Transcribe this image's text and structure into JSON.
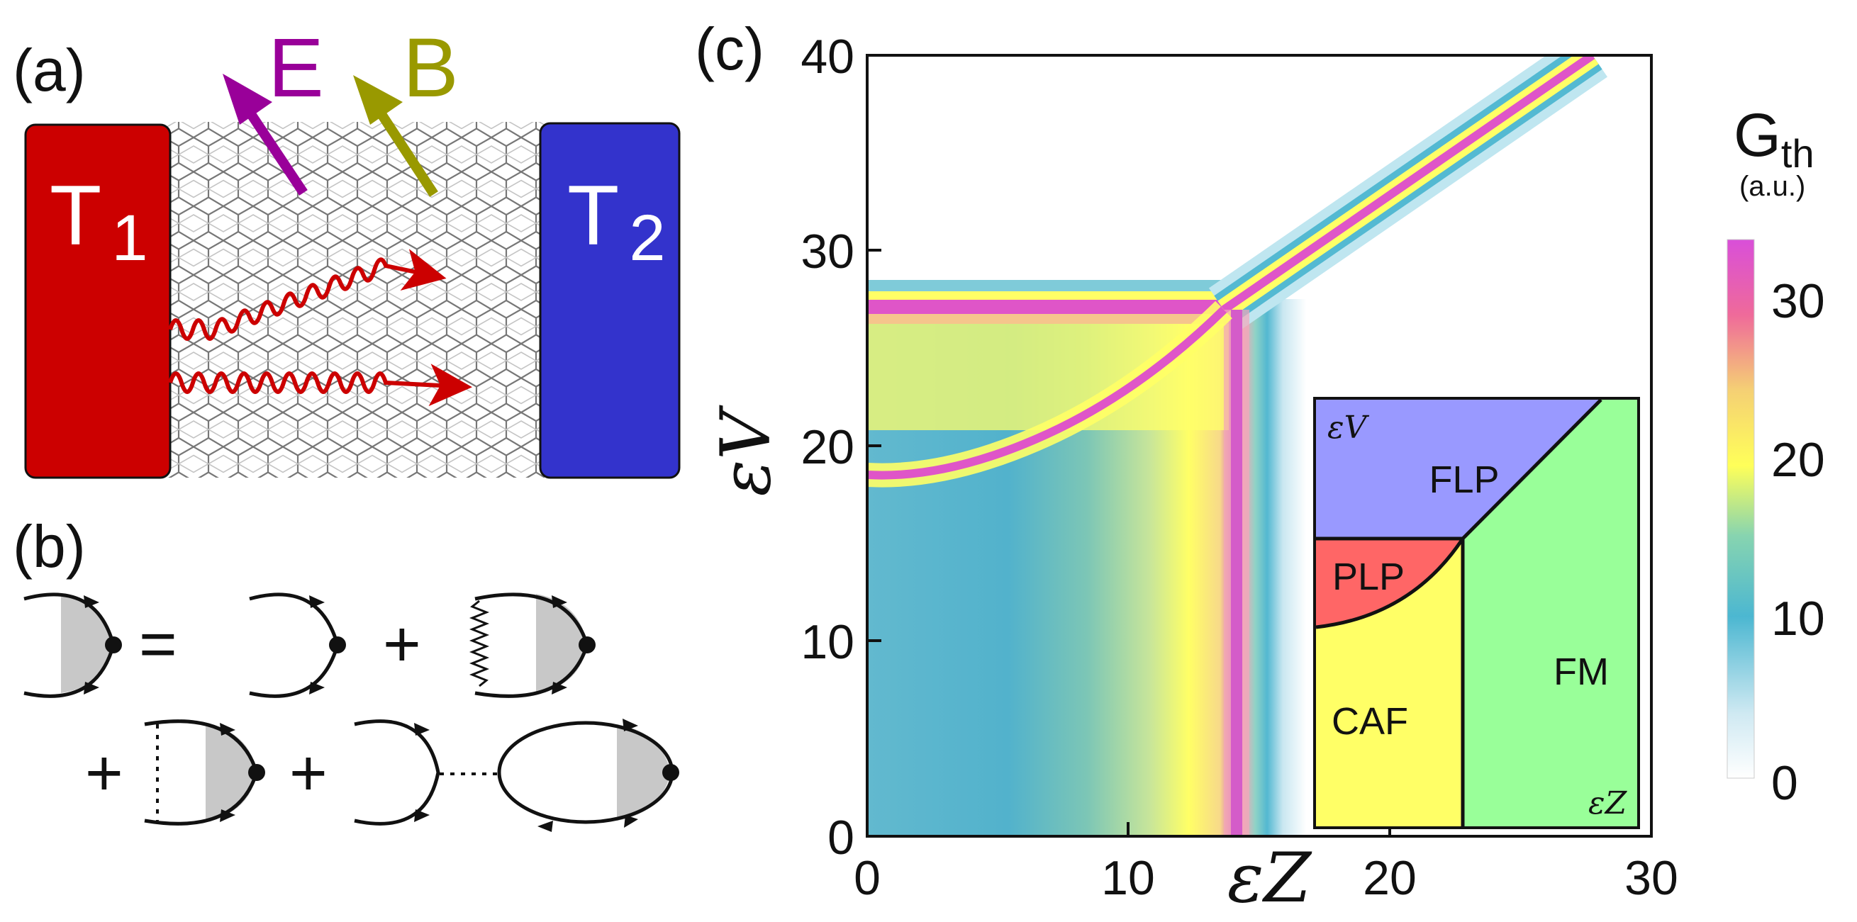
{
  "panels": {
    "a": {
      "label": "(a)",
      "left_lead": "T",
      "left_sub": "1",
      "right_lead": "T",
      "right_sub": "2",
      "field_e": "E",
      "field_b": "B"
    },
    "b": {
      "label": "(b)",
      "equals": "=",
      "plus": "+"
    },
    "c": {
      "label": "(c)"
    }
  },
  "colors": {
    "lead_hot": "#cc0000",
    "lead_cold": "#3333cc",
    "field_e": "#990099",
    "field_b": "#999900",
    "magnon": "#cc0000",
    "flp": "#9999ff",
    "plp": "#ff6666",
    "caf": "#ffff66",
    "fm": "#99ff99"
  },
  "chart_data": {
    "type": "heatmap",
    "xlabel": "εZ",
    "ylabel": "εV",
    "xlim": [
      0,
      30
    ],
    "ylim": [
      0,
      40
    ],
    "x_ticks": [
      0,
      10,
      20,
      30
    ],
    "y_ticks": [
      0,
      10,
      20,
      30,
      40
    ],
    "colorbar": {
      "title": "G",
      "title_sub": "th",
      "unit": "(a.u.)",
      "range": [
        0,
        34
      ],
      "ticks": [
        0,
        10,
        20,
        30
      ]
    },
    "features": {
      "triple_point": [
        14,
        27
      ],
      "vertical_line_x": 14,
      "horizontal_line_y": 27.5,
      "curve_start": [
        0,
        18.5
      ],
      "diagonal_end": [
        27.5,
        40
      ]
    },
    "inset": {
      "regions": [
        "FLP",
        "PLP",
        "CAF",
        "FM"
      ],
      "xlabel": "εZ",
      "ylabel": "εV"
    }
  }
}
